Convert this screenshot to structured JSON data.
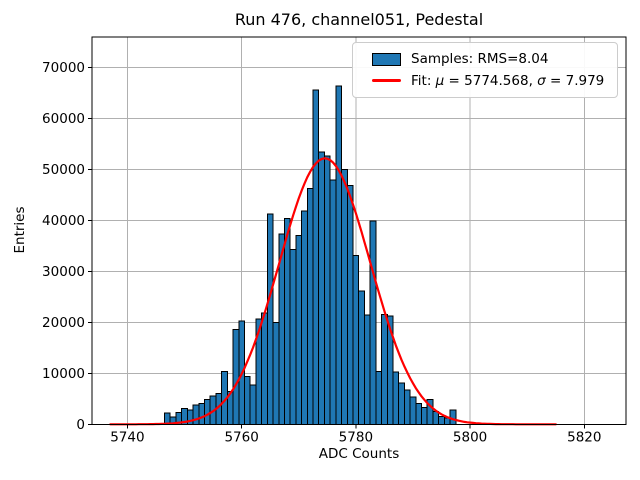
{
  "chart_data": {
    "type": "bar",
    "subtype": "histogram",
    "title": "Run 476, channel051, Pedestal",
    "xlabel": "ADC Counts",
    "ylabel": "Entries",
    "xlim": [
      5733.8,
      5827.3
    ],
    "ylim": [
      0,
      76000
    ],
    "xticks": [
      5740,
      5760,
      5780,
      5800,
      5820
    ],
    "yticks": [
      0,
      10000,
      20000,
      30000,
      40000,
      50000,
      60000,
      70000
    ],
    "grid": true,
    "grid_color": "#b0b0b0",
    "bar_color": "#1f77b4",
    "bar_edge_color": "#000000",
    "fit_color": "#ff0000",
    "bin_width": 1,
    "bin_centers": [
      5747,
      5748,
      5749,
      5750,
      5751,
      5752,
      5753,
      5754,
      5755,
      5756,
      5757,
      5758,
      5759,
      5760,
      5761,
      5762,
      5763,
      5764,
      5765,
      5766,
      5767,
      5768,
      5769,
      5770,
      5771,
      5772,
      5773,
      5774,
      5775,
      5776,
      5777,
      5778,
      5779,
      5780,
      5781,
      5782,
      5783,
      5784,
      5785,
      5786,
      5787,
      5788,
      5789,
      5790,
      5791,
      5792,
      5793,
      5794,
      5795,
      5796,
      5797
    ],
    "counts": [
      2200,
      1400,
      2300,
      3100,
      2800,
      3800,
      4100,
      4900,
      5600,
      6000,
      10400,
      6400,
      18600,
      20300,
      9400,
      7700,
      20700,
      21800,
      41300,
      20000,
      37300,
      40400,
      34300,
      37000,
      41900,
      46300,
      65600,
      53400,
      52600,
      47900,
      66400,
      50000,
      46900,
      33100,
      26200,
      21400,
      39900,
      10400,
      21500,
      21300,
      10300,
      8100,
      6700,
      5400,
      4100,
      3300,
      4900,
      2500,
      1500,
      1200,
      2800
    ],
    "fit": {
      "shape": "gaussian",
      "mu": 5774.568,
      "sigma": 7.979,
      "amplitude": 52200,
      "x_start": 5737,
      "x_end": 5815
    },
    "legend_position": "upper right",
    "legend": {
      "samples_label": "Samples: RMS=8.04",
      "fit_parts": {
        "prefix": "Fit: ",
        "mu_symbol": "μ",
        "mu_value": " = 5774.568, ",
        "sigma_symbol": "σ",
        "sigma_value": " = 7.979"
      }
    }
  }
}
